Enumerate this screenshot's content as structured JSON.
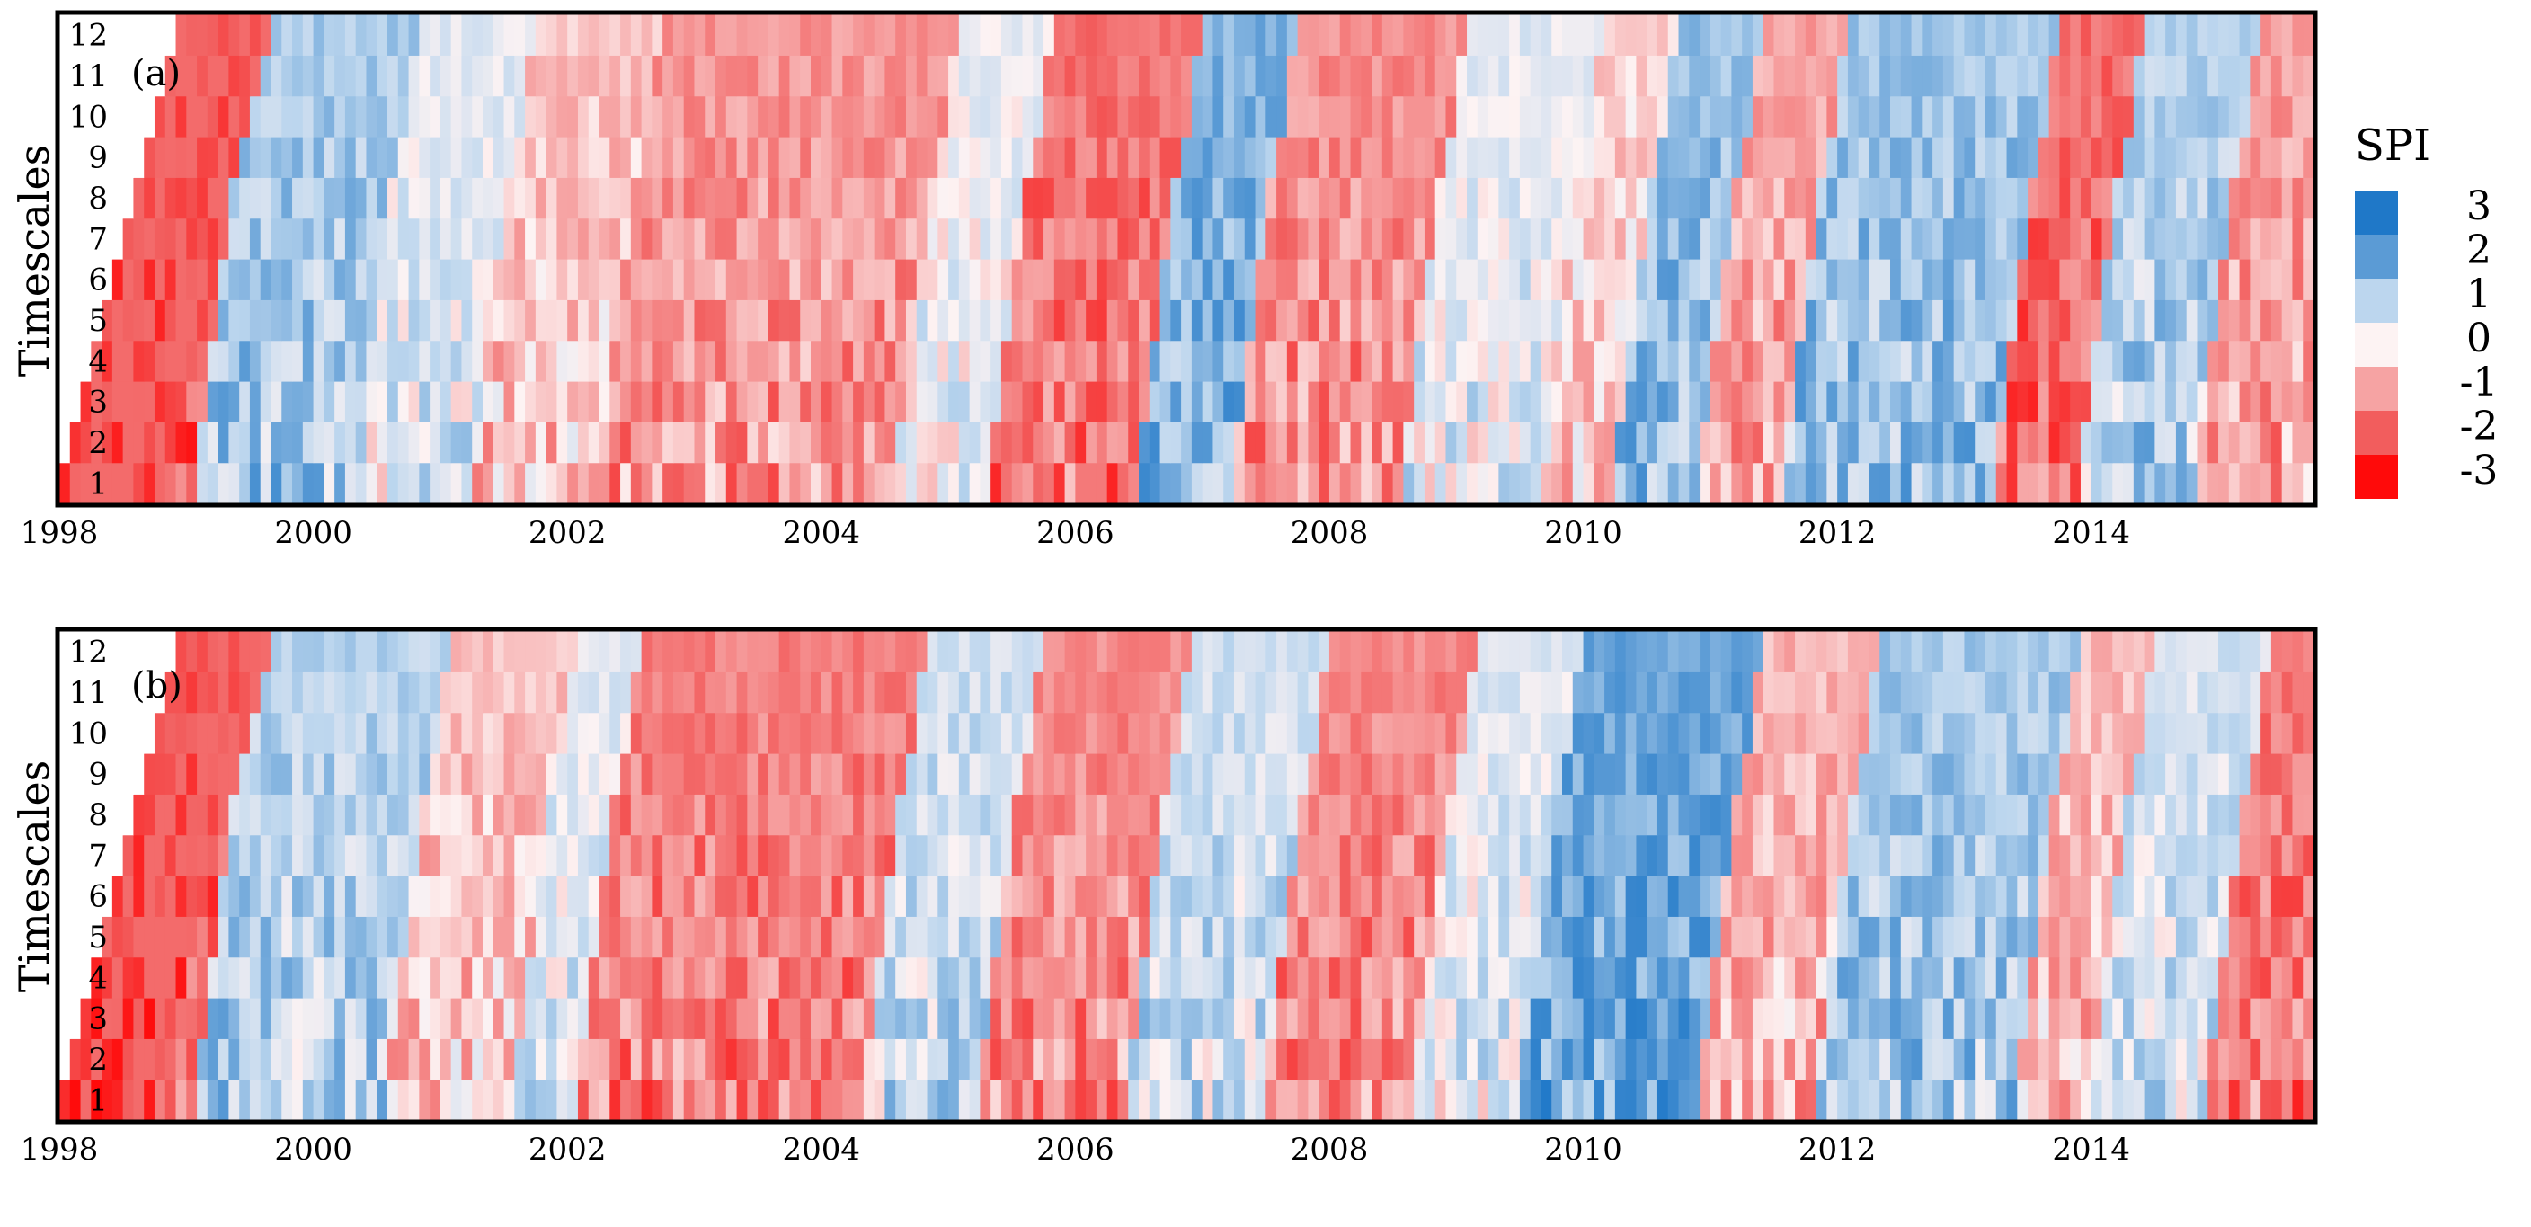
{
  "chart_data": [
    {
      "type": "heatmap",
      "panel_label": "(a)",
      "ylabel": "Timescales",
      "xlabel": "",
      "x_range": [
        "1998-01",
        "2015-09"
      ],
      "x_ticks": [
        "1998",
        "2000",
        "2002",
        "2004",
        "2006",
        "2008",
        "2010",
        "2012",
        "2014"
      ],
      "y_ticks": [
        "1",
        "2",
        "3",
        "4",
        "5",
        "6",
        "7",
        "8",
        "9",
        "10",
        "11",
        "12"
      ],
      "ylim": [
        1,
        12
      ],
      "values_description_by_period": [
        {
          "start": "1998-01",
          "end": "1998-12",
          "spi": -2.0
        },
        {
          "start": "1999-01",
          "end": "2000-03",
          "spi": 1.2
        },
        {
          "start": "2000-04",
          "end": "2001-02",
          "spi": 0.4
        },
        {
          "start": "2001-03",
          "end": "2002-02",
          "spi": -0.6
        },
        {
          "start": "2002-03",
          "end": "2004-06",
          "spi": -1.2
        },
        {
          "start": "2004-07",
          "end": "2005-03",
          "spi": 0.2
        },
        {
          "start": "2005-04",
          "end": "2006-05",
          "spi": -1.7
        },
        {
          "start": "2006-06",
          "end": "2007-02",
          "spi": 1.6
        },
        {
          "start": "2007-03",
          "end": "2008-06",
          "spi": -1.3
        },
        {
          "start": "2008-07",
          "end": "2009-07",
          "spi": 0.4
        },
        {
          "start": "2009-08",
          "end": "2010-02",
          "spi": -0.4
        },
        {
          "start": "2010-03",
          "end": "2010-10",
          "spi": 1.4
        },
        {
          "start": "2010-11",
          "end": "2011-06",
          "spi": -1.0
        },
        {
          "start": "2011-07",
          "end": "2013-02",
          "spi": 1.3
        },
        {
          "start": "2013-03",
          "end": "2013-10",
          "spi": -1.8
        },
        {
          "start": "2013-11",
          "end": "2014-09",
          "spi": 1.0
        },
        {
          "start": "2014-10",
          "end": "2015-09",
          "spi": -1.1
        }
      ]
    },
    {
      "type": "heatmap",
      "panel_label": "(b)",
      "ylabel": "Timescales",
      "xlabel": "",
      "x_range": [
        "1998-01",
        "2015-09"
      ],
      "x_ticks": [
        "1998",
        "2000",
        "2002",
        "2004",
        "2006",
        "2008",
        "2010",
        "2012",
        "2014"
      ],
      "y_ticks": [
        "1",
        "2",
        "3",
        "4",
        "5",
        "6",
        "7",
        "8",
        "9",
        "10",
        "11",
        "12"
      ],
      "ylim": [
        1,
        12
      ],
      "values_description_by_period": [
        {
          "start": "1998-01",
          "end": "1998-12",
          "spi": -2.0
        },
        {
          "start": "1999-01",
          "end": "2000-06",
          "spi": 1.0
        },
        {
          "start": "2000-07",
          "end": "2001-06",
          "spi": -0.6
        },
        {
          "start": "2001-07",
          "end": "2001-12",
          "spi": 0.4
        },
        {
          "start": "2002-01",
          "end": "2004-03",
          "spi": -1.5
        },
        {
          "start": "2004-04",
          "end": "2005-02",
          "spi": 0.7
        },
        {
          "start": "2005-03",
          "end": "2006-04",
          "spi": -1.3
        },
        {
          "start": "2006-05",
          "end": "2007-05",
          "spi": 0.7
        },
        {
          "start": "2007-06",
          "end": "2008-07",
          "spi": -1.4
        },
        {
          "start": "2008-08",
          "end": "2009-05",
          "spi": 0.4
        },
        {
          "start": "2009-06",
          "end": "2010-10",
          "spi": 1.9
        },
        {
          "start": "2010-11",
          "end": "2011-09",
          "spi": -0.8
        },
        {
          "start": "2011-10",
          "end": "2013-04",
          "spi": 1.2
        },
        {
          "start": "2013-05",
          "end": "2013-11",
          "spi": -0.7
        },
        {
          "start": "2013-12",
          "end": "2014-10",
          "spi": 0.6
        },
        {
          "start": "2014-11",
          "end": "2015-09",
          "spi": -1.6
        }
      ]
    }
  ],
  "colorbar": {
    "title": "SPI",
    "labels": [
      "3",
      "2",
      "1",
      "0",
      "-1",
      "-2",
      "-3"
    ],
    "colors": [
      "#1f78c8",
      "#5b9bd5",
      "#bcd6ee",
      "#fdf3f3",
      "#f6a3a3",
      "#f25d5d",
      "#ff0a0a"
    ],
    "range": [
      -3,
      3
    ]
  }
}
